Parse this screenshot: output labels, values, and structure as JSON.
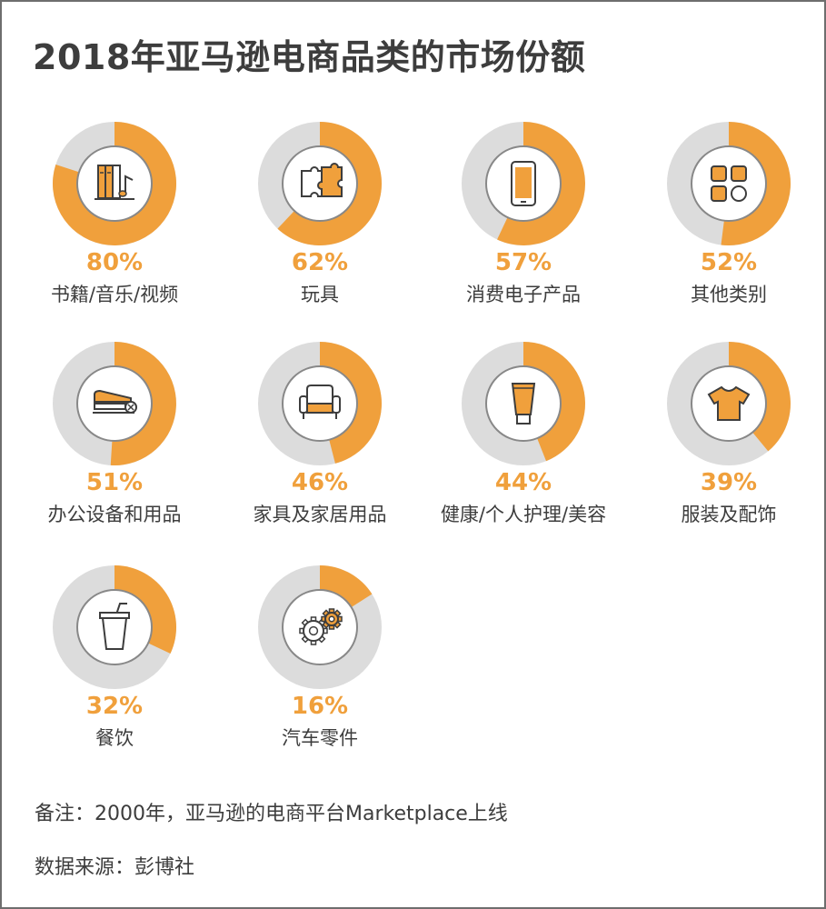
{
  "title": "2018年亚马逊电商品类的市场份额",
  "chart_data": {
    "type": "pie",
    "title": "2018年亚马逊电商品类的市场份额",
    "categories": [
      "书籍/音乐/视频",
      "玩具",
      "消费电子产品",
      "其他类别",
      "办公设备和用品",
      "家具及家居用品",
      "健康/个人护理/美容",
      "服装及配饰",
      "餐饮",
      "汽车零件"
    ],
    "values": [
      80,
      62,
      57,
      52,
      51,
      46,
      44,
      39,
      32,
      16
    ],
    "labels": [
      "80%",
      "62%",
      "57%",
      "52%",
      "51%",
      "46%",
      "44%",
      "39%",
      "32%",
      "16%"
    ],
    "icons": [
      "books-music-icon",
      "puzzle-icon",
      "smartphone-icon",
      "grid-apps-icon",
      "stapler-icon",
      "armchair-icon",
      "lotion-tube-icon",
      "tshirt-icon",
      "drink-cup-icon",
      "gears-icon"
    ],
    "unit": "%",
    "colors": {
      "filled": "#f0a03c",
      "remainder": "#dcdcdc",
      "icon": "#3d3d3d",
      "text": "#3d3d3d"
    }
  },
  "notes": {
    "remark": "备注：2000年，亚马逊的电商平台Marketplace上线",
    "source": "数据来源：彭博社"
  }
}
